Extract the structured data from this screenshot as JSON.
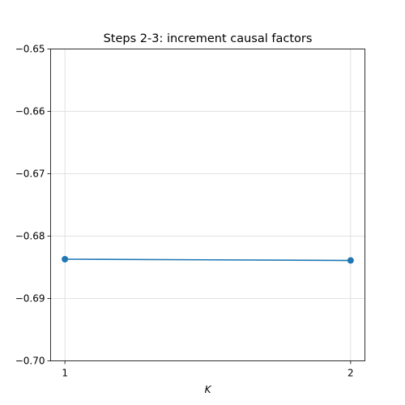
{
  "chart_data": {
    "type": "line",
    "title": "Steps 2-3: increment causal factors",
    "xlabel": "K",
    "ylabel": "",
    "x": [
      1,
      2
    ],
    "xticks": [
      "1",
      "2"
    ],
    "xlim": [
      0.95,
      2.05
    ],
    "ylim": [
      -0.7,
      -0.65
    ],
    "yticks": [
      -0.7,
      -0.69,
      -0.68,
      -0.67,
      -0.66,
      -0.65
    ],
    "ytick_labels": [
      "−0.70",
      "−0.69",
      "−0.68",
      "−0.67",
      "−0.66",
      "−0.65"
    ],
    "grid": true,
    "series": [
      {
        "values": [
          -0.6837,
          -0.6839
        ],
        "color": "#1f77b4"
      }
    ]
  }
}
